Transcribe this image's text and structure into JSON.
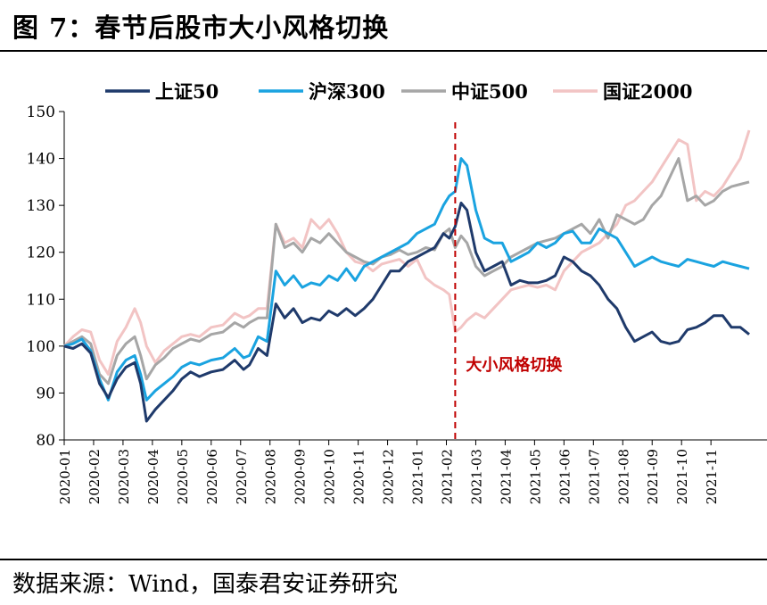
{
  "title": "图 7：春节后股市大小风格切换",
  "source": "数据来源：Wind，国泰君安证券研究",
  "chart_data": {
    "type": "line",
    "ylim": [
      80,
      150
    ],
    "yticks": [
      80,
      90,
      100,
      110,
      120,
      130,
      140,
      150
    ],
    "x_labels": [
      "2020-01",
      "2020-02",
      "2020-03",
      "2020-04",
      "2020-05",
      "2020-06",
      "2020-07",
      "2020-08",
      "2020-09",
      "2020-10",
      "2020-11",
      "2020-12",
      "2021-01",
      "2021-02",
      "2021-03",
      "2021-04",
      "2021-05",
      "2021-06",
      "2021-07",
      "2021-08",
      "2021-09",
      "2021-10",
      "2021-11"
    ],
    "x_range": [
      0,
      23.3
    ],
    "grid": false,
    "legend_position": "top",
    "annotation": {
      "text": "大小风格切换",
      "x": 13.3,
      "color": "#c00000"
    },
    "series": [
      {
        "name": "上证50",
        "color": "#1f3a6b",
        "x": [
          0,
          0.3,
          0.6,
          0.9,
          1.2,
          1.5,
          1.8,
          2.1,
          2.4,
          2.6,
          2.8,
          3.1,
          3.4,
          3.7,
          4,
          4.3,
          4.6,
          5,
          5.4,
          5.8,
          6.1,
          6.3,
          6.6,
          6.9,
          7.2,
          7.5,
          7.8,
          8.1,
          8.4,
          8.7,
          9,
          9.3,
          9.6,
          9.9,
          10.2,
          10.5,
          10.8,
          11.1,
          11.4,
          11.7,
          12,
          12.3,
          12.6,
          12.9,
          13.1,
          13.3,
          13.5,
          13.7,
          14,
          14.3,
          14.6,
          14.9,
          15.2,
          15.5,
          15.8,
          16.1,
          16.4,
          16.7,
          17,
          17.3,
          17.6,
          17.9,
          18.2,
          18.5,
          18.8,
          19.1,
          19.4,
          19.7,
          20,
          20.3,
          20.6,
          20.9,
          21.2,
          21.5,
          21.8,
          22.1,
          22.4,
          22.7,
          23,
          23.3
        ],
        "values": [
          100,
          99.5,
          100.5,
          98.5,
          92,
          89,
          93,
          95.5,
          96.5,
          92,
          84,
          86.5,
          88.5,
          90.5,
          93,
          94.5,
          93.5,
          94.5,
          95,
          97,
          95,
          96,
          99.5,
          98,
          109,
          106,
          108,
          105,
          106,
          105.5,
          107.5,
          106.5,
          108,
          106.5,
          108,
          110,
          113,
          116,
          116,
          118,
          119,
          120,
          121,
          124,
          123,
          125.5,
          130.5,
          129,
          120,
          116,
          117,
          118,
          113,
          114,
          113.5,
          113.5,
          114,
          115,
          119,
          118,
          116,
          115,
          113,
          110,
          108,
          104,
          101,
          102,
          103,
          101,
          100.5,
          101,
          103.5,
          104,
          105,
          106.5,
          106.5,
          104,
          104,
          102.5
        ]
      },
      {
        "name": "沪深300",
        "color": "#1aa3e0",
        "x": [
          0,
          0.3,
          0.6,
          0.9,
          1.2,
          1.5,
          1.8,
          2.1,
          2.4,
          2.6,
          2.8,
          3.1,
          3.4,
          3.7,
          4,
          4.3,
          4.6,
          5,
          5.4,
          5.8,
          6.1,
          6.3,
          6.6,
          6.9,
          7.2,
          7.5,
          7.8,
          8.1,
          8.4,
          8.7,
          9,
          9.3,
          9.6,
          9.9,
          10.2,
          10.5,
          10.8,
          11.1,
          11.4,
          11.7,
          12,
          12.3,
          12.6,
          12.9,
          13.1,
          13.3,
          13.5,
          13.7,
          14,
          14.3,
          14.6,
          14.9,
          15.2,
          15.5,
          15.8,
          16.1,
          16.4,
          16.7,
          17,
          17.3,
          17.6,
          17.9,
          18.2,
          18.5,
          18.8,
          19.1,
          19.4,
          19.7,
          20,
          20.3,
          20.6,
          20.9,
          21.2,
          21.5,
          21.8,
          22.1,
          22.4,
          22.7,
          23,
          23.3
        ],
        "values": [
          100,
          100.5,
          101.5,
          99,
          93,
          88.5,
          94.5,
          97,
          98,
          94,
          88.5,
          90.5,
          92,
          93.5,
          95.5,
          96.5,
          96,
          97,
          97.5,
          99.5,
          97.5,
          98,
          102,
          101,
          116,
          113,
          115,
          112.5,
          113.5,
          113,
          115,
          114,
          116.5,
          114,
          117,
          118,
          119,
          120,
          121,
          122,
          124,
          125,
          126,
          130,
          132,
          133,
          140,
          138.5,
          129,
          123,
          122,
          122,
          118,
          119,
          120,
          122,
          121,
          122,
          124,
          124.5,
          122,
          122,
          125,
          124,
          123,
          120,
          117,
          118,
          119,
          118,
          117.5,
          117,
          118.5,
          118,
          117.5,
          117,
          118,
          117.5,
          117,
          116.5
        ]
      },
      {
        "name": "中证500",
        "color": "#a6a6a6",
        "x": [
          0,
          0.3,
          0.6,
          0.9,
          1.2,
          1.5,
          1.8,
          2.1,
          2.4,
          2.6,
          2.8,
          3.1,
          3.4,
          3.7,
          4,
          4.3,
          4.6,
          5,
          5.4,
          5.8,
          6.1,
          6.3,
          6.6,
          6.9,
          7.2,
          7.5,
          7.8,
          8.1,
          8.4,
          8.7,
          9,
          9.3,
          9.6,
          9.9,
          10.2,
          10.5,
          10.8,
          11.1,
          11.4,
          11.7,
          12,
          12.3,
          12.6,
          12.9,
          13.1,
          13.3,
          13.5,
          13.7,
          14,
          14.3,
          14.6,
          14.9,
          15.2,
          15.5,
          15.8,
          16.1,
          16.4,
          16.7,
          17,
          17.3,
          17.6,
          17.9,
          18.2,
          18.5,
          18.8,
          19.1,
          19.4,
          19.7,
          20,
          20.3,
          20.6,
          20.9,
          21.2,
          21.5,
          21.8,
          22.1,
          22.4,
          22.7,
          23,
          23.3
        ],
        "values": [
          100,
          101,
          102,
          100.5,
          94,
          92,
          98,
          100.5,
          102,
          98,
          93,
          96,
          97.5,
          99.5,
          100.5,
          101.5,
          101,
          102.5,
          103,
          105,
          104,
          105,
          106,
          106,
          126,
          121,
          122,
          120,
          123,
          122,
          124,
          122,
          120,
          119,
          118,
          117.5,
          119,
          119.5,
          120.5,
          119.5,
          120,
          121,
          120.5,
          124,
          125,
          121,
          123.5,
          122,
          117,
          115,
          116,
          117,
          119,
          120,
          121,
          122,
          122.5,
          123,
          124,
          125,
          126,
          124,
          127,
          123,
          128,
          127,
          126,
          127,
          130,
          132,
          136,
          140,
          131,
          132,
          130,
          131,
          133,
          134,
          134.5,
          135
        ]
      },
      {
        "name": "国证2000",
        "color": "#f2c4c4",
        "x": [
          0,
          0.3,
          0.6,
          0.9,
          1.2,
          1.5,
          1.8,
          2.1,
          2.4,
          2.6,
          2.8,
          3.1,
          3.4,
          3.7,
          4,
          4.3,
          4.6,
          5,
          5.4,
          5.8,
          6.1,
          6.3,
          6.6,
          6.9,
          7.2,
          7.5,
          7.8,
          8.1,
          8.4,
          8.7,
          9,
          9.3,
          9.6,
          9.9,
          10.2,
          10.5,
          10.8,
          11.1,
          11.4,
          11.7,
          12,
          12.3,
          12.6,
          12.9,
          13.1,
          13.3,
          13.5,
          13.7,
          14,
          14.3,
          14.6,
          14.9,
          15.2,
          15.5,
          15.8,
          16.1,
          16.4,
          16.7,
          17,
          17.3,
          17.6,
          17.9,
          18.2,
          18.5,
          18.8,
          19.1,
          19.4,
          19.7,
          20,
          20.3,
          20.6,
          20.9,
          21.2,
          21.5,
          21.8,
          22.1,
          22.4,
          22.7,
          23,
          23.3
        ],
        "values": [
          100,
          102,
          103.5,
          103,
          97,
          94,
          101,
          104,
          108,
          105,
          100,
          96.5,
          99,
          100.5,
          102,
          102.5,
          102,
          104,
          104.5,
          107,
          106,
          106.5,
          108,
          108,
          126,
          122,
          123,
          121,
          127,
          125,
          127,
          124,
          120,
          118,
          117.5,
          116,
          117.5,
          118,
          118.5,
          117,
          118.5,
          114.5,
          113,
          112,
          111,
          103,
          104,
          105.5,
          107,
          106,
          108,
          110,
          112,
          112.5,
          113,
          112.5,
          113,
          112,
          116,
          118,
          120,
          121,
          122,
          124,
          126,
          130,
          131,
          133,
          135,
          138,
          141,
          144,
          143,
          131,
          133,
          132,
          134,
          137,
          140,
          146
        ]
      }
    ]
  }
}
